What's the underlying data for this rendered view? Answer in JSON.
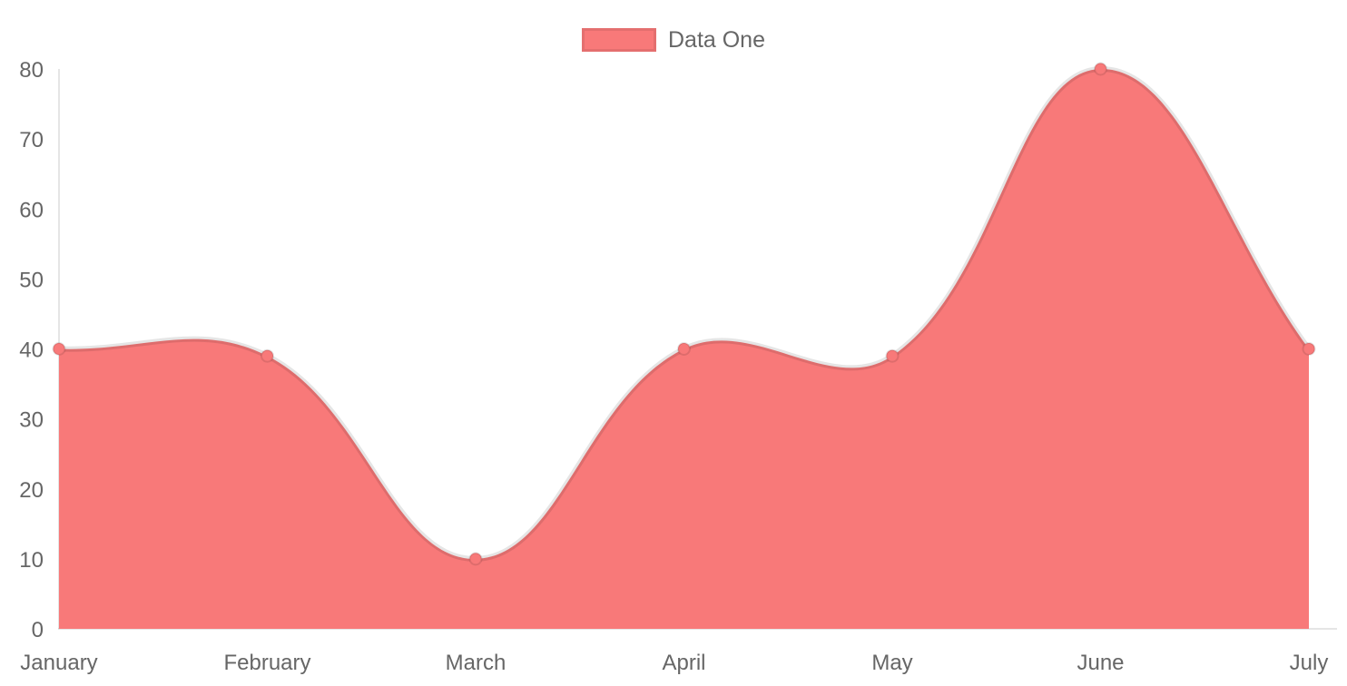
{
  "legend": {
    "label": "Data One",
    "swatch_color": "#f87979"
  },
  "chart_data": {
    "type": "area",
    "title": "",
    "categories": [
      "January",
      "February",
      "March",
      "April",
      "May",
      "June",
      "July"
    ],
    "series": [
      {
        "name": "Data One",
        "values": [
          40,
          39,
          10,
          40,
          39,
          80,
          40
        ]
      }
    ],
    "xlabel": "",
    "ylabel": "",
    "ylim": [
      0,
      80
    ],
    "yticks": [
      0,
      10,
      20,
      30,
      40,
      50,
      60,
      70,
      80
    ],
    "grid": false,
    "legend_position": "top",
    "line_tension": 0.4,
    "colors": {
      "fill": "#f87979",
      "point_fill": "#f87979",
      "line_stroke": "rgba(0,0,0,0.1)",
      "axis_line": "rgba(0,0,0,0.1)",
      "tick_text": "#666666"
    }
  }
}
